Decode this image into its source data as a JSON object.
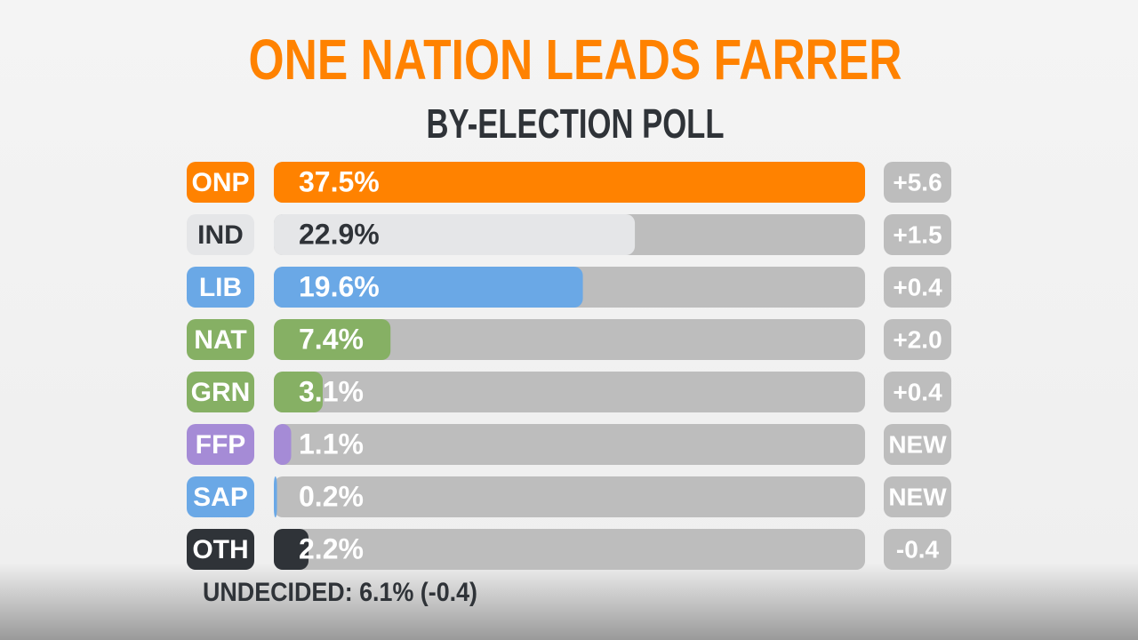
{
  "chart_data": {
    "type": "bar",
    "title": "ONE NATION LEADS FARRER",
    "subtitle": "BY-ELECTION POLL",
    "categories": [
      "ONP",
      "IND",
      "LIB",
      "NAT",
      "GRN",
      "FFP",
      "SAP",
      "OTH"
    ],
    "values": [
      37.5,
      22.9,
      19.6,
      7.4,
      3.1,
      1.1,
      0.2,
      2.2
    ],
    "value_labels": [
      "37.5%",
      "22.9%",
      "19.6%",
      "7.4%",
      "3.1%",
      "1.1%",
      "0.2%",
      "2.2%"
    ],
    "changes": [
      "+5.6",
      "+1.5",
      "+0.4",
      "+2.0",
      "+0.4",
      "NEW",
      "NEW",
      "-0.4"
    ],
    "colors": [
      "#ff8200",
      "#e5e6e8",
      "#6aa8e6",
      "#86b064",
      "#86b064",
      "#a58bd6",
      "#6aa8e6",
      "#2f3338"
    ],
    "footnote": "UNDECIDED: 6.1% (-0.4)"
  }
}
